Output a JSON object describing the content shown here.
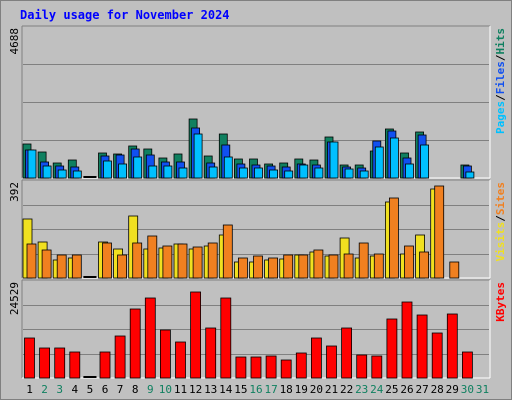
{
  "chart_data": {
    "type": "bar",
    "title": "Daily usage for November 2024",
    "categories": [
      "1",
      "2",
      "3",
      "4",
      "5",
      "6",
      "7",
      "8",
      "9",
      "10",
      "11",
      "12",
      "13",
      "14",
      "15",
      "16",
      "17",
      "18",
      "19",
      "20",
      "21",
      "22",
      "23",
      "24",
      "25",
      "26",
      "27",
      "28",
      "29",
      "30",
      "31"
    ],
    "weekend_days": [
      "2",
      "3",
      "9",
      "10",
      "16",
      "17",
      "23",
      "24",
      "30",
      "31"
    ],
    "panels": [
      {
        "id": "pages-files-hits",
        "ymax_label": "4688",
        "ymax": 4688,
        "legend": [
          {
            "text": "Pages",
            "color": "#00c0ff"
          },
          {
            "text": "/",
            "color": "#000000"
          },
          {
            "text": "Files",
            "color": "#1050f0"
          },
          {
            "text": "/",
            "color": "#000000"
          },
          {
            "text": "Hits",
            "color": "#108060"
          }
        ],
        "series": [
          {
            "name": "Hits",
            "color": "#108060",
            "values": [
              1070,
              820,
              480,
              560,
              0,
              780,
              750,
              1020,
              910,
              620,
              760,
              1870,
              700,
              1400,
              590,
              600,
              450,
              470,
              590,
              570,
              1310,
              400,
              420,
              850,
              1550,
              780,
              1460,
              0,
              0,
              420,
              0
            ]
          },
          {
            "name": "Files",
            "color": "#1050f0",
            "values": [
              900,
              500,
              370,
              340,
              0,
              700,
              720,
              930,
              740,
              520,
              520,
              1570,
              460,
              1050,
              450,
              420,
              370,
              340,
              450,
              400,
              1150,
              350,
              310,
              1180,
              1480,
              640,
              1350,
              0,
              0,
              380,
              0
            ]
          },
          {
            "name": "Pages",
            "color": "#00c0ff",
            "values": [
              880,
              380,
              240,
              220,
              0,
              550,
              430,
              660,
              390,
              370,
              320,
              1390,
              360,
              680,
              320,
              310,
              260,
              230,
              400,
              310,
              1130,
              270,
              230,
              980,
              1280,
              430,
              1060,
              0,
              0,
              180,
              0
            ]
          }
        ]
      },
      {
        "id": "visits-sites",
        "ymax_label": "392",
        "ymax": 392,
        "legend": [
          {
            "text": "Visits",
            "color": "#f0e020"
          },
          {
            "text": "/",
            "color": "#000000"
          },
          {
            "text": "Sites",
            "color": "#f08020"
          }
        ],
        "series": [
          {
            "name": "Visits",
            "color": "#f0e020",
            "values": [
              245,
              150,
              75,
              85,
              0,
              150,
              120,
              260,
              120,
              125,
              140,
              120,
              135,
              180,
              65,
              65,
              75,
              80,
              95,
              110,
              90,
              165,
              85,
              90,
              316,
              100,
              180,
              372,
              0,
              0,
              0
            ]
          },
          {
            "name": "Sites",
            "color": "#f08020",
            "values": [
              140,
              115,
              95,
              95,
              0,
              145,
              95,
              145,
              175,
              135,
              140,
              130,
              145,
              220,
              85,
              90,
              85,
              95,
              95,
              115,
              95,
              100,
              145,
              100,
              332,
              135,
              110,
              384,
              65,
              0,
              0
            ]
          }
        ]
      },
      {
        "id": "kbytes",
        "ymax_label": "24529",
        "ymax": 24529,
        "legend": [
          {
            "text": "KBytes",
            "color": "#ff0000"
          }
        ],
        "series": [
          {
            "name": "KBytes",
            "color": "#ff0000",
            "values": [
              10500,
              7800,
              7900,
              6700,
              0,
              6800,
              11000,
              18000,
              21000,
              12500,
              9300,
              22500,
              13000,
              21000,
              5500,
              5500,
              5800,
              4600,
              6600,
              10500,
              8300,
              13000,
              5900,
              5700,
              15500,
              19800,
              16500,
              11700,
              16800,
              6700,
              0
            ]
          }
        ]
      }
    ]
  }
}
